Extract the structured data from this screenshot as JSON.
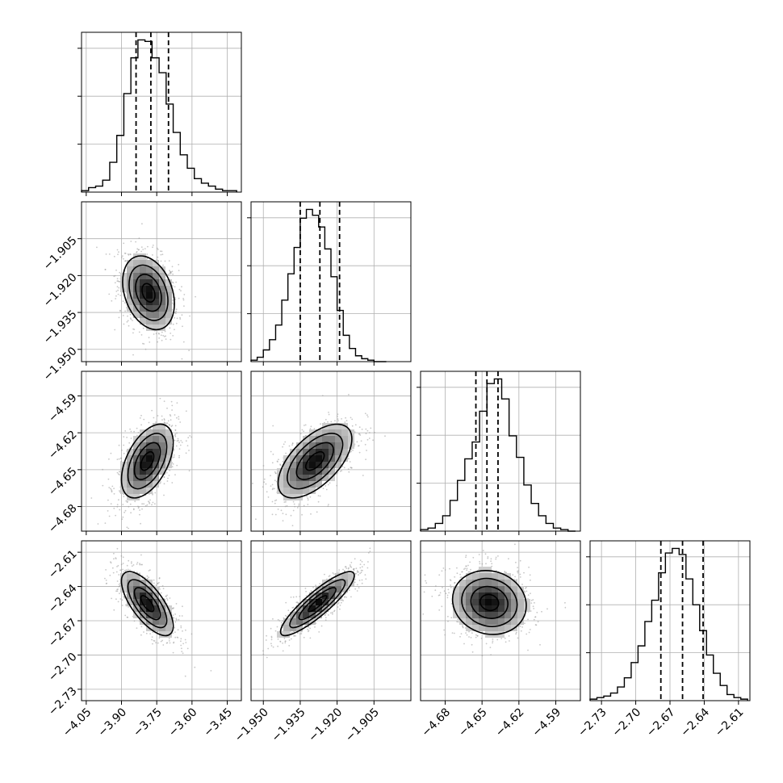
{
  "chart_data": {
    "type": "corner",
    "grid": true,
    "parameters": [
      {
        "range": [
          -4.07,
          -3.39
        ],
        "ticks": [
          -4.05,
          -3.9,
          -3.75,
          -3.6,
          -3.45
        ],
        "tick_labels": [
          "−4.05",
          "−3.90",
          "−3.75",
          "−3.60",
          "−3.45"
        ],
        "quantiles": [
          -3.838,
          -3.775,
          -3.7
        ],
        "hist": {
          "bin_edges": [
            -4.07,
            -4.04,
            -4.01,
            -3.98,
            -3.95,
            -3.92,
            -3.89,
            -3.86,
            -3.83,
            -3.8,
            -3.77,
            -3.74,
            -3.71,
            -3.68,
            -3.65,
            -3.62,
            -3.59,
            -3.56,
            -3.53,
            -3.5,
            -3.47,
            -3.44,
            -3.41
          ],
          "counts": [
            1,
            3,
            4,
            8,
            20,
            38,
            66,
            90,
            102,
            101,
            90,
            80,
            59,
            40,
            25,
            16,
            9,
            6,
            4,
            2,
            1,
            1
          ]
        }
      },
      {
        "range": [
          -1.955,
          -1.89
        ],
        "ticks": [
          -1.95,
          -1.935,
          -1.92,
          -1.905
        ],
        "tick_labels": [
          "−1.950",
          "−1.935",
          "−1.920",
          "−1.905"
        ],
        "quantiles": [
          -1.935,
          -1.927,
          -1.919
        ],
        "hist": {
          "bin_edges": [
            -1.955,
            -1.9525,
            -1.95,
            -1.9475,
            -1.945,
            -1.9425,
            -1.94,
            -1.9375,
            -1.935,
            -1.9325,
            -1.93,
            -1.9275,
            -1.925,
            -1.9225,
            -1.92,
            -1.9175,
            -1.915,
            -1.9125,
            -1.91,
            -1.9075,
            -1.905,
            -1.9025,
            -1.9
          ],
          "counts": [
            1,
            3,
            8,
            15,
            25,
            42,
            60,
            78,
            98,
            104,
            100,
            92,
            77,
            58,
            35,
            18,
            9,
            4,
            2,
            1,
            0,
            0
          ]
        }
      },
      {
        "range": [
          -4.7,
          -4.57
        ],
        "ticks": [
          -4.68,
          -4.65,
          -4.62,
          -4.59
        ],
        "tick_labels": [
          "−4.68",
          "−4.65",
          "−4.62",
          "−4.59"
        ],
        "quantiles": [
          -4.655,
          -4.646,
          -4.637
        ],
        "hist": {
          "bin_edges": [
            -4.7,
            -4.694,
            -4.688,
            -4.682,
            -4.676,
            -4.67,
            -4.664,
            -4.658,
            -4.652,
            -4.646,
            -4.64,
            -4.634,
            -4.628,
            -4.622,
            -4.616,
            -4.61,
            -4.604,
            -4.598,
            -4.592,
            -4.586,
            -4.58,
            -4.574
          ],
          "counts": [
            1,
            2,
            5,
            10,
            20,
            33,
            47,
            58,
            78,
            96,
            99,
            86,
            62,
            48,
            30,
            18,
            10,
            5,
            2,
            1,
            0
          ]
        }
      },
      {
        "range": [
          -2.74,
          -2.6
        ],
        "ticks": [
          -2.73,
          -2.7,
          -2.67,
          -2.64,
          -2.61
        ],
        "tick_labels": [
          "−2.73",
          "−2.70",
          "−2.67",
          "−2.64",
          "−2.61"
        ],
        "quantiles": [
          -2.678,
          -2.659,
          -2.641
        ],
        "hist": {
          "bin_edges": [
            -2.74,
            -2.734,
            -2.728,
            -2.722,
            -2.716,
            -2.71,
            -2.704,
            -2.698,
            -2.692,
            -2.686,
            -2.68,
            -2.674,
            -2.668,
            -2.662,
            -2.656,
            -2.65,
            -2.644,
            -2.638,
            -2.632,
            -2.626,
            -2.62,
            -2.614,
            -2.608,
            -2.602
          ],
          "counts": [
            1,
            2,
            3,
            5,
            9,
            15,
            25,
            36,
            52,
            66,
            84,
            97,
            100,
            96,
            80,
            63,
            46,
            30,
            18,
            10,
            4,
            2,
            1
          ]
        }
      }
    ],
    "pairs": [
      {
        "row": 1,
        "col": 0,
        "center": [
          -3.785,
          -1.927
        ],
        "sigma": [
          0.055,
          0.0075
        ],
        "rho": -0.3
      },
      {
        "row": 2,
        "col": 0,
        "center": [
          -3.79,
          -4.643
        ],
        "sigma": [
          0.055,
          0.015
        ],
        "rho": 0.5
      },
      {
        "row": 2,
        "col": 1,
        "center": [
          -1.929,
          -4.643
        ],
        "sigma": [
          0.0075,
          0.015
        ],
        "rho": 0.6
      },
      {
        "row": 3,
        "col": 0,
        "center": [
          -3.79,
          -2.655
        ],
        "sigma": [
          0.055,
          0.014
        ],
        "rho": -0.7
      },
      {
        "row": 3,
        "col": 1,
        "center": [
          -1.928,
          -2.655
        ],
        "sigma": [
          0.0075,
          0.014
        ],
        "rho": 0.88
      },
      {
        "row": 3,
        "col": 2,
        "center": [
          -4.644,
          -2.654
        ],
        "sigma": [
          0.015,
          0.014
        ],
        "rho": -0.1
      }
    ]
  }
}
